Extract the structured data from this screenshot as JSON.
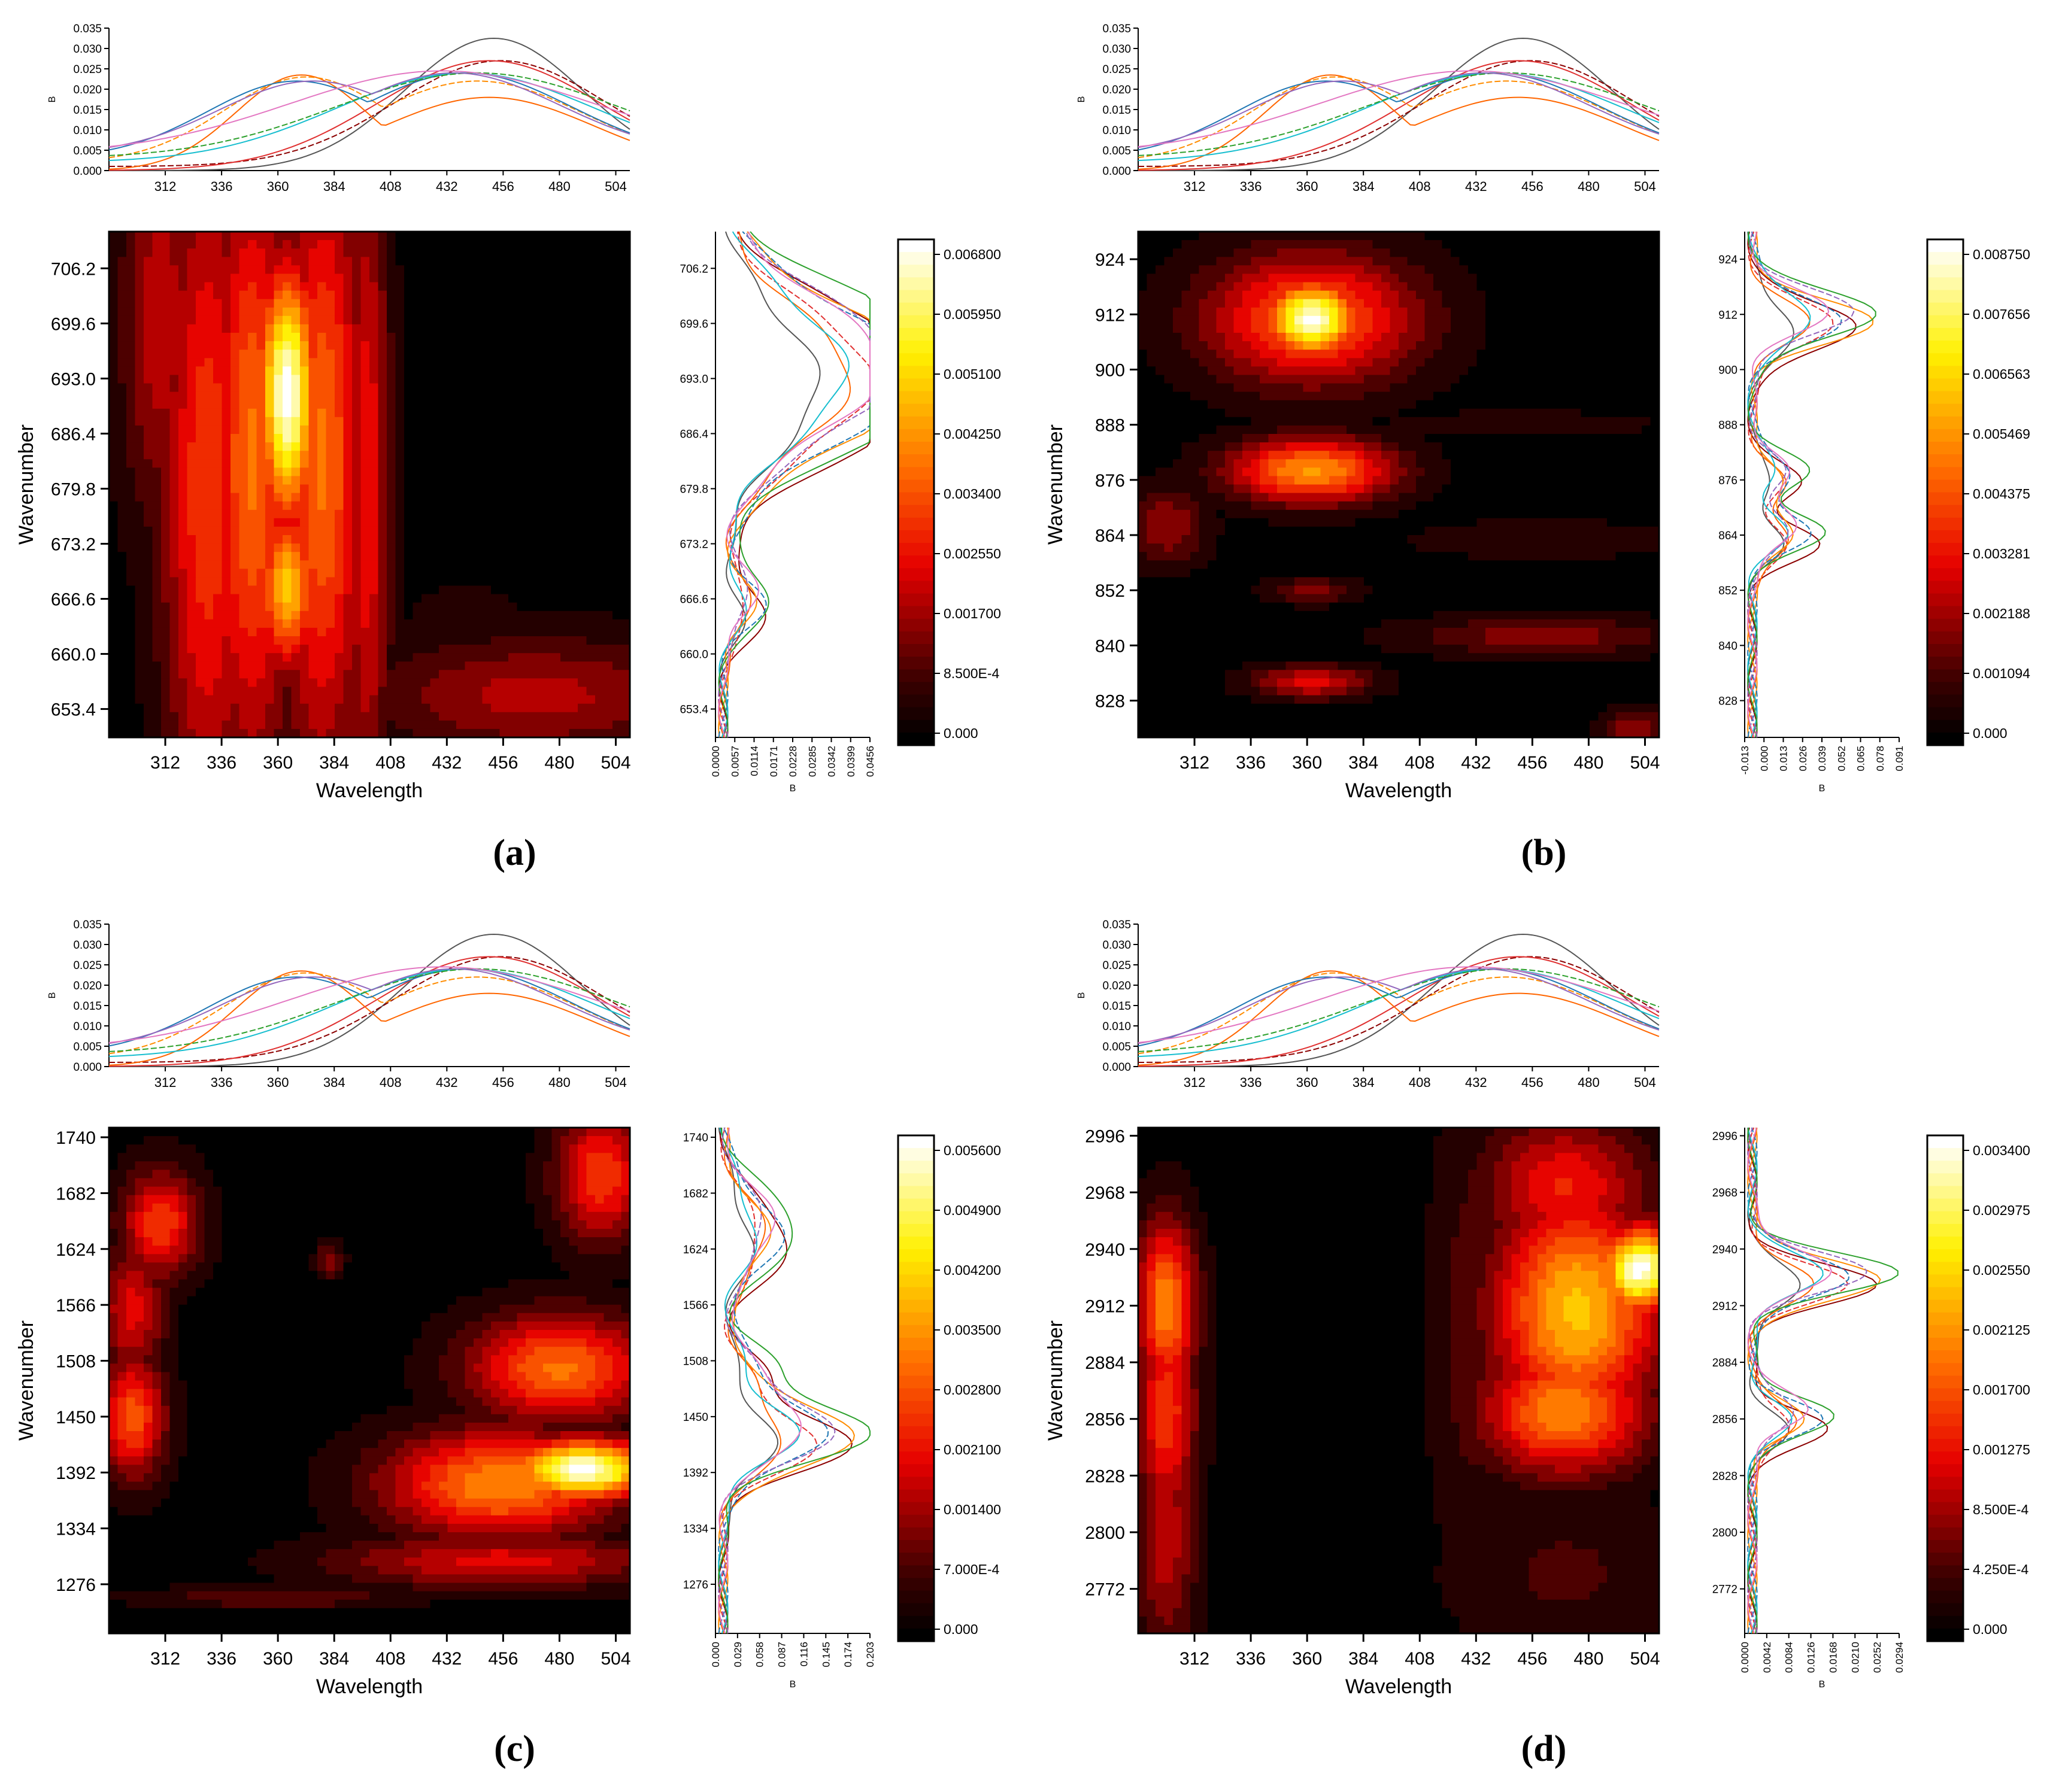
{
  "figure": {
    "panels": [
      {
        "label": "(a)"
      },
      {
        "label": "(b)"
      },
      {
        "label": "(c)"
      },
      {
        "label": "(d)"
      }
    ]
  },
  "chart_data": [
    {
      "type": "heatmap",
      "panel": "(a)",
      "xlabel": "Wavelength",
      "ylabel": "Wavenumber",
      "x_ticks": [
        312,
        336,
        360,
        384,
        408,
        432,
        456,
        480,
        504
      ],
      "xlim": [
        288,
        510
      ],
      "y_ticks": [
        653.4,
        660.0,
        666.6,
        673.2,
        679.8,
        686.4,
        693.0,
        699.6,
        706.2
      ],
      "y_tick_labels": [
        "653.4",
        "660.0",
        "666.6",
        "673.2",
        "679.8",
        "686.4",
        "693.0",
        "699.6",
        "706.2"
      ],
      "ylim": [
        650.0,
        710.6
      ],
      "top_spectrum": {
        "ylabel": "B",
        "y_ticks": [
          "0.000",
          "0.005",
          "0.010",
          "0.015",
          "0.020",
          "0.025",
          "0.030",
          "0.035"
        ],
        "ylim": [
          0,
          0.035
        ]
      },
      "side_spectrum": {
        "xlabel": "B",
        "x_ticks": [
          "0.0000",
          "0.0057",
          "0.0114",
          "0.0171",
          "0.0228",
          "0.0285",
          "0.0342",
          "0.0399",
          "0.0456"
        ],
        "xlim": [
          0,
          0.0456
        ],
        "peaks": [
          {
            "center": 694.0,
            "height": 0.0435,
            "width": 8
          },
          {
            "center": 693.0,
            "height": 0.042,
            "width": 8
          },
          {
            "center": 666.0,
            "height": 0.018,
            "width": 3
          }
        ]
      },
      "colorbar": {
        "labels": [
          "0.000",
          "8.500E-4",
          "0.001700",
          "0.002550",
          "0.003400",
          "0.004250",
          "0.005100",
          "0.005950",
          "0.006800"
        ],
        "max": 0.0068
      },
      "hotspots": [
        {
          "x": 364,
          "y": 691,
          "sx": 9,
          "sy": 11,
          "v": 1.0
        },
        {
          "x": 364,
          "y": 668,
          "sx": 9,
          "sy": 7,
          "v": 0.7
        },
        {
          "x": 349,
          "y": 683,
          "sx": 13,
          "sy": 26,
          "v": 0.55
        },
        {
          "x": 379,
          "y": 683,
          "sx": 13,
          "sy": 26,
          "v": 0.55
        },
        {
          "x": 330,
          "y": 680,
          "sx": 14,
          "sy": 30,
          "v": 0.45
        },
        {
          "x": 398,
          "y": 680,
          "sx": 7,
          "sy": 30,
          "v": 0.38
        },
        {
          "x": 310,
          "y": 700,
          "sx": 12,
          "sy": 18,
          "v": 0.3
        },
        {
          "x": 470,
          "y": 655,
          "sx": 50,
          "sy": 5,
          "v": 0.28
        },
        {
          "x": 440,
          "y": 662,
          "sx": 20,
          "sy": 5,
          "v": 0.08
        }
      ]
    },
    {
      "type": "heatmap",
      "panel": "(b)",
      "xlabel": "Wavelength",
      "ylabel": "Wavenumber",
      "x_ticks": [
        312,
        336,
        360,
        384,
        408,
        432,
        456,
        480,
        504
      ],
      "xlim": [
        288,
        510
      ],
      "y_ticks": [
        828,
        840,
        852,
        864,
        876,
        888,
        900,
        912,
        924
      ],
      "y_tick_labels": [
        "828",
        "840",
        "852",
        "864",
        "876",
        "888",
        "900",
        "912",
        "924"
      ],
      "ylim": [
        820,
        930
      ],
      "top_spectrum": {
        "ylabel": "B",
        "y_ticks": [
          "0.000",
          "0.005",
          "0.010",
          "0.015",
          "0.020",
          "0.025",
          "0.030",
          "0.035"
        ],
        "ylim": [
          0,
          0.035
        ]
      },
      "side_spectrum": {
        "xlabel": "B",
        "x_ticks": [
          "-0.013",
          "0.000",
          "0.013",
          "0.026",
          "0.039",
          "0.052",
          "0.065",
          "0.078",
          "0.091"
        ],
        "xlim": [
          -0.013,
          0.091
        ],
        "peaks": [
          {
            "center": 911.0,
            "height": 0.085,
            "width": 5
          },
          {
            "center": 877.0,
            "height": 0.045,
            "width": 4
          },
          {
            "center": 864.0,
            "height": 0.06,
            "width": 4
          }
        ]
      },
      "colorbar": {
        "labels": [
          "0.000",
          "0.001094",
          "0.002188",
          "0.003281",
          "0.004375",
          "0.005469",
          "0.006563",
          "0.007656",
          "0.008750"
        ],
        "max": 0.00875
      },
      "hotspots": [
        {
          "x": 362,
          "y": 911,
          "sx": 14,
          "sy": 6,
          "v": 1.0
        },
        {
          "x": 362,
          "y": 911,
          "sx": 32,
          "sy": 10,
          "v": 0.55
        },
        {
          "x": 362,
          "y": 878,
          "sx": 25,
          "sy": 5,
          "v": 0.62
        },
        {
          "x": 362,
          "y": 832,
          "sx": 18,
          "sy": 2.5,
          "v": 0.35
        },
        {
          "x": 362,
          "y": 852,
          "sx": 14,
          "sy": 2,
          "v": 0.2
        },
        {
          "x": 460,
          "y": 842,
          "sx": 40,
          "sy": 3,
          "v": 0.22
        },
        {
          "x": 300,
          "y": 866,
          "sx": 12,
          "sy": 6,
          "v": 0.25
        },
        {
          "x": 460,
          "y": 863,
          "sx": 40,
          "sy": 3,
          "v": 0.1
        },
        {
          "x": 450,
          "y": 888,
          "sx": 40,
          "sy": 2,
          "v": 0.1
        },
        {
          "x": 500,
          "y": 822,
          "sx": 10,
          "sy": 3,
          "v": 0.25
        }
      ]
    },
    {
      "type": "heatmap",
      "panel": "(c)",
      "xlabel": "Wavelength",
      "ylabel": "Wavenumber",
      "x_ticks": [
        312,
        336,
        360,
        384,
        408,
        432,
        456,
        480,
        504
      ],
      "xlim": [
        288,
        510
      ],
      "y_ticks": [
        1276,
        1334,
        1392,
        1450,
        1508,
        1566,
        1624,
        1682,
        1740
      ],
      "y_tick_labels": [
        "1276",
        "1334",
        "1392",
        "1450",
        "1508",
        "1566",
        "1624",
        "1682",
        "1740"
      ],
      "ylim": [
        1225,
        1750
      ],
      "top_spectrum": {
        "ylabel": "B",
        "y_ticks": [
          "0.000",
          "0.005",
          "0.010",
          "0.015",
          "0.020",
          "0.025",
          "0.030",
          "0.035"
        ],
        "ylim": [
          0,
          0.035
        ]
      },
      "side_spectrum": {
        "xlabel": "B",
        "x_ticks": [
          "0.000",
          "0.029",
          "0.058",
          "0.087",
          "0.116",
          "0.145",
          "0.174",
          "0.203"
        ],
        "xlim": [
          0,
          0.203
        ],
        "peaks": [
          {
            "center": 1430.0,
            "height": 0.19,
            "width": 30
          },
          {
            "center": 1640.0,
            "height": 0.12,
            "width": 40
          },
          {
            "center": 1500.0,
            "height": 0.07,
            "width": 25
          }
        ]
      },
      "colorbar": {
        "labels": [
          "0.000",
          "7.000E-4",
          "0.001400",
          "0.002100",
          "0.002800",
          "0.003500",
          "0.004200",
          "0.004900",
          "0.005600"
        ],
        "max": 0.0056
      },
      "hotspots": [
        {
          "x": 490,
          "y": 1395,
          "sx": 22,
          "sy": 22,
          "v": 1.0
        },
        {
          "x": 455,
          "y": 1380,
          "sx": 35,
          "sy": 40,
          "v": 0.6
        },
        {
          "x": 480,
          "y": 1500,
          "sx": 28,
          "sy": 40,
          "v": 0.55
        },
        {
          "x": 498,
          "y": 1700,
          "sx": 14,
          "sy": 50,
          "v": 0.45
        },
        {
          "x": 298,
          "y": 1450,
          "sx": 10,
          "sy": 45,
          "v": 0.5
        },
        {
          "x": 310,
          "y": 1650,
          "sx": 12,
          "sy": 40,
          "v": 0.45
        },
        {
          "x": 298,
          "y": 1560,
          "sx": 10,
          "sy": 50,
          "v": 0.35
        },
        {
          "x": 382,
          "y": 1612,
          "sx": 4,
          "sy": 12,
          "v": 0.25
        },
        {
          "x": 360,
          "y": 1262,
          "sx": 40,
          "sy": 8,
          "v": 0.18
        },
        {
          "x": 455,
          "y": 1300,
          "sx": 50,
          "sy": 20,
          "v": 0.35
        }
      ]
    },
    {
      "type": "heatmap",
      "panel": "(d)",
      "xlabel": "Wavelength",
      "ylabel": "Wavenumber",
      "x_ticks": [
        312,
        336,
        360,
        384,
        408,
        432,
        456,
        480,
        504
      ],
      "xlim": [
        288,
        510
      ],
      "y_ticks": [
        2772,
        2800,
        2828,
        2856,
        2884,
        2912,
        2940,
        2968,
        2996
      ],
      "y_tick_labels": [
        "2772",
        "2800",
        "2828",
        "2856",
        "2884",
        "2912",
        "2940",
        "2968",
        "2996"
      ],
      "ylim": [
        2750,
        3000
      ],
      "top_spectrum": {
        "ylabel": "B",
        "y_ticks": [
          "0.000",
          "0.005",
          "0.010",
          "0.015",
          "0.020",
          "0.025",
          "0.030",
          "0.035"
        ],
        "ylim": [
          0,
          0.035
        ]
      },
      "side_spectrum": {
        "xlabel": "B",
        "x_ticks": [
          "0.0000",
          "0.0042",
          "0.0084",
          "0.0126",
          "0.0168",
          "0.0210",
          "0.0252",
          "0.0294"
        ],
        "xlim": [
          0,
          0.0294
        ],
        "peaks": [
          {
            "center": 2926.0,
            "height": 0.027,
            "width": 10
          },
          {
            "center": 2856.0,
            "height": 0.02,
            "width": 9
          }
        ]
      },
      "colorbar": {
        "labels": [
          "0.000",
          "4.250E-4",
          "8.500E-4",
          "0.001275",
          "0.001700",
          "0.002125",
          "0.002550",
          "0.002975",
          "0.003400"
        ],
        "max": 0.0034
      },
      "hotspots": [
        {
          "x": 502,
          "y": 2930,
          "sx": 12,
          "sy": 15,
          "v": 1.0
        },
        {
          "x": 475,
          "y": 2910,
          "sx": 25,
          "sy": 40,
          "v": 0.7
        },
        {
          "x": 470,
          "y": 2860,
          "sx": 25,
          "sy": 22,
          "v": 0.6
        },
        {
          "x": 470,
          "y": 2970,
          "sx": 25,
          "sy": 25,
          "v": 0.4
        },
        {
          "x": 300,
          "y": 2912,
          "sx": 9,
          "sy": 30,
          "v": 0.6
        },
        {
          "x": 300,
          "y": 2860,
          "sx": 9,
          "sy": 40,
          "v": 0.45
        },
        {
          "x": 300,
          "y": 2800,
          "sx": 9,
          "sy": 45,
          "v": 0.3
        },
        {
          "x": 470,
          "y": 2780,
          "sx": 35,
          "sy": 30,
          "v": 0.12
        },
        {
          "x": 430,
          "y": 2900,
          "sx": 12,
          "sy": 80,
          "v": 0.15
        }
      ]
    }
  ]
}
